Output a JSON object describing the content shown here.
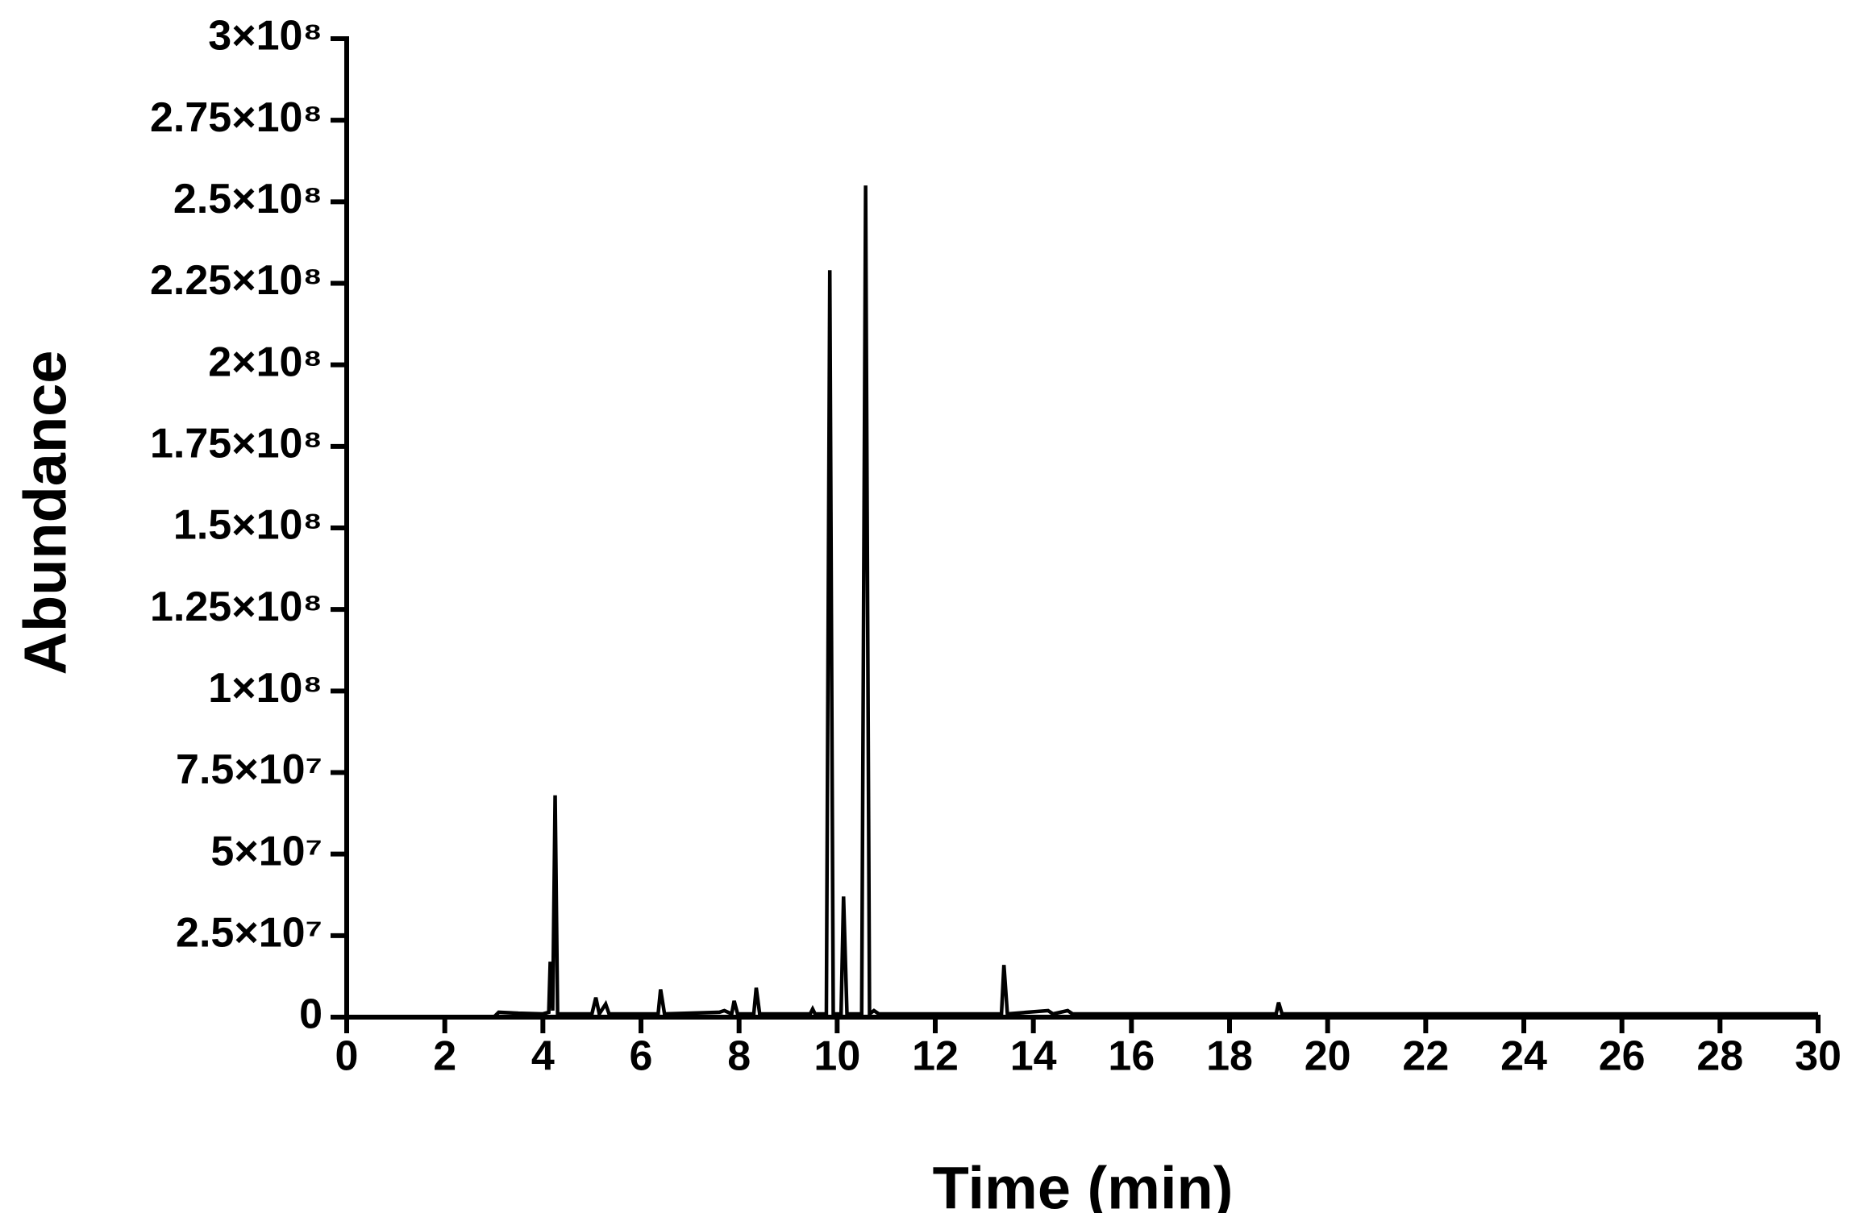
{
  "chart_data": {
    "type": "line",
    "xlabel": "Time (min)",
    "ylabel": "Abundance",
    "x": [
      0,
      3.0,
      3.1,
      3.5,
      4.0,
      4.12,
      4.15,
      4.2,
      4.25,
      4.3,
      5.0,
      5.08,
      5.15,
      5.28,
      5.35,
      6.35,
      6.4,
      6.48,
      7.6,
      7.7,
      7.85,
      7.9,
      7.97,
      8.3,
      8.35,
      8.42,
      9.45,
      9.5,
      9.55,
      9.78,
      9.85,
      9.92,
      10.08,
      10.13,
      10.2,
      10.5,
      10.58,
      10.66,
      10.75,
      10.85,
      13.35,
      13.4,
      13.47,
      14.3,
      14.4,
      14.7,
      14.8,
      18.95,
      19.0,
      19.07,
      30
    ],
    "values": [
      0,
      0,
      1500000,
      1200000,
      1000000,
      1500000,
      17000000,
      2000000,
      68000000,
      1000000,
      1000000,
      6000000,
      1000000,
      4000000,
      1000000,
      1000000,
      8500000,
      1000000,
      1500000,
      2000000,
      1000000,
      5000000,
      1000000,
      1000000,
      9000000,
      1000000,
      1000000,
      2500000,
      1000000,
      1000000,
      229000000,
      1000000,
      1000000,
      37000000,
      1000000,
      1000000,
      255000000,
      1000000,
      2000000,
      1000000,
      1000000,
      16000000,
      1000000,
      2000000,
      1000000,
      2000000,
      1000000,
      1000000,
      4500000,
      1000000,
      1000000
    ],
    "color": "#000000",
    "xlim": [
      0,
      30
    ],
    "xticks": [
      0,
      2,
      4,
      6,
      8,
      10,
      12,
      14,
      16,
      18,
      20,
      22,
      24,
      26,
      28,
      30
    ],
    "ylim": [
      0,
      300000000
    ],
    "yticks": [
      0,
      {
        "value": 25000000,
        "label": "2.5×10⁷"
      },
      {
        "value": 50000000,
        "label": "5×10⁷"
      },
      {
        "value": 75000000,
        "label": "7.5×10⁷"
      },
      {
        "value": 100000000,
        "label": "1×10⁸"
      },
      {
        "value": 125000000,
        "label": "1.25×10⁸"
      },
      {
        "value": 150000000,
        "label": "1.5×10⁸"
      },
      {
        "value": 175000000,
        "label": "1.75×10⁸"
      },
      {
        "value": 200000000,
        "label": "2×10⁸"
      },
      {
        "value": 225000000,
        "label": "2.25×10⁸"
      },
      {
        "value": 250000000,
        "label": "2.5×10⁸"
      },
      {
        "value": 275000000,
        "label": "2.75×10⁸"
      },
      {
        "value": 300000000,
        "label": "3×10⁸"
      }
    ]
  }
}
